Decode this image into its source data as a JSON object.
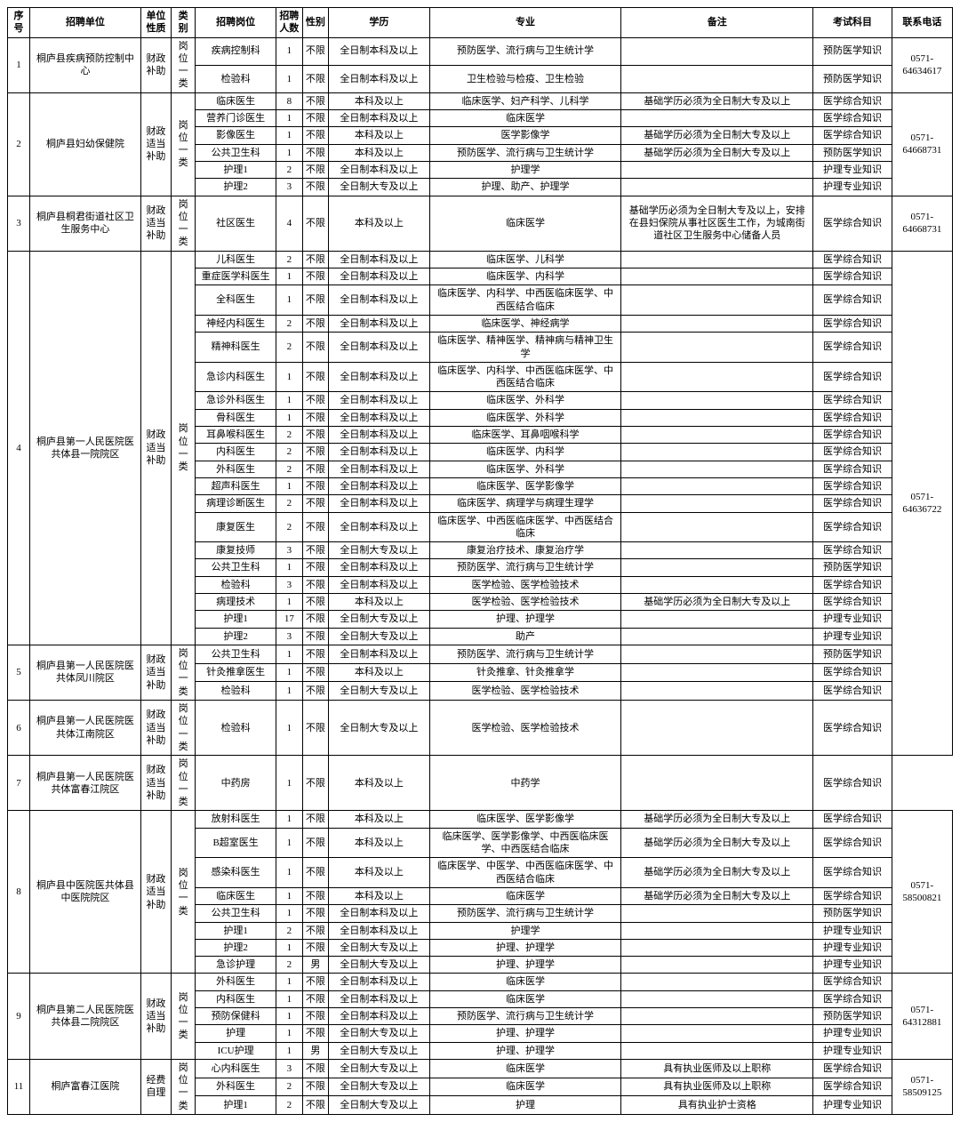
{
  "headers": {
    "seq": "序号",
    "unit": "招聘单位",
    "nature": "单位性质",
    "category": "类别",
    "position": "招聘岗位",
    "count": "招聘人数",
    "gender": "性别",
    "education": "学历",
    "major": "专业",
    "note": "备注",
    "subject": "考试科目",
    "tel": "联系电话"
  },
  "groups": [
    {
      "seq": "1",
      "unit": "桐庐县疾病预防控制中心",
      "nature": "财政补助",
      "category": "岗位一类",
      "tel": "0571-64634617",
      "rows": [
        {
          "pos": "疾病控制科",
          "num": "1",
          "gen": "不限",
          "edu": "全日制本科及以上",
          "maj": "预防医学、流行病与卫生统计学",
          "note": "",
          "sub": "预防医学知识"
        },
        {
          "pos": "检验科",
          "num": "1",
          "gen": "不限",
          "edu": "全日制本科及以上",
          "maj": "卫生检验与检疫、卫生检验",
          "note": "",
          "sub": "预防医学知识"
        }
      ]
    },
    {
      "seq": "2",
      "unit": "桐庐县妇幼保健院",
      "nature": "财政适当补助",
      "category": "岗位一类",
      "tel": "0571-64668731",
      "rows": [
        {
          "pos": "临床医生",
          "num": "8",
          "gen": "不限",
          "edu": "本科及以上",
          "maj": "临床医学、妇产科学、儿科学",
          "note": "基础学历必须为全日制大专及以上",
          "sub": "医学综合知识"
        },
        {
          "pos": "营养门诊医生",
          "num": "1",
          "gen": "不限",
          "edu": "全日制本科及以上",
          "maj": "临床医学",
          "note": "",
          "sub": "医学综合知识"
        },
        {
          "pos": "影像医生",
          "num": "1",
          "gen": "不限",
          "edu": "本科及以上",
          "maj": "医学影像学",
          "note": "基础学历必须为全日制大专及以上",
          "sub": "医学综合知识"
        },
        {
          "pos": "公共卫生科",
          "num": "1",
          "gen": "不限",
          "edu": "本科及以上",
          "maj": "预防医学、流行病与卫生统计学",
          "note": "基础学历必须为全日制大专及以上",
          "sub": "预防医学知识"
        },
        {
          "pos": "护理1",
          "num": "2",
          "gen": "不限",
          "edu": "全日制本科及以上",
          "maj": "护理学",
          "note": "",
          "sub": "护理专业知识"
        },
        {
          "pos": "护理2",
          "num": "3",
          "gen": "不限",
          "edu": "全日制大专及以上",
          "maj": "护理、助产、护理学",
          "note": "",
          "sub": "护理专业知识"
        }
      ]
    },
    {
      "seq": "3",
      "unit": "桐庐县桐君街道社区卫生服务中心",
      "nature": "财政适当补助",
      "category": "岗位一类",
      "tel": "0571-64668731",
      "rows": [
        {
          "pos": "社区医生",
          "num": "4",
          "gen": "不限",
          "edu": "本科及以上",
          "maj": "临床医学",
          "note": "基础学历必须为全日制大专及以上，安排在县妇保院从事社区医生工作，为城南街道社区卫生服务中心储备人员",
          "sub": "医学综合知识"
        }
      ]
    },
    {
      "seq": "4",
      "unit": "桐庐县第一人民医院医共体县一院院区",
      "nature": "财政适当补助",
      "category": "岗位一类",
      "tel": "0571-64636722",
      "telRowspan": 24,
      "rows": [
        {
          "pos": "儿科医生",
          "num": "2",
          "gen": "不限",
          "edu": "全日制本科及以上",
          "maj": "临床医学、儿科学",
          "note": "",
          "sub": "医学综合知识"
        },
        {
          "pos": "重症医学科医生",
          "num": "1",
          "gen": "不限",
          "edu": "全日制本科及以上",
          "maj": "临床医学、内科学",
          "note": "",
          "sub": "医学综合知识"
        },
        {
          "pos": "全科医生",
          "num": "1",
          "gen": "不限",
          "edu": "全日制本科及以上",
          "maj": "临床医学、内科学、中西医临床医学、中西医结合临床",
          "note": "",
          "sub": "医学综合知识"
        },
        {
          "pos": "神经内科医生",
          "num": "2",
          "gen": "不限",
          "edu": "全日制本科及以上",
          "maj": "临床医学、神经病学",
          "note": "",
          "sub": "医学综合知识"
        },
        {
          "pos": "精神科医生",
          "num": "2",
          "gen": "不限",
          "edu": "全日制本科及以上",
          "maj": "临床医学、精神医学、精神病与精神卫生学",
          "note": "",
          "sub": "医学综合知识"
        },
        {
          "pos": "急诊内科医生",
          "num": "1",
          "gen": "不限",
          "edu": "全日制本科及以上",
          "maj": "临床医学、内科学、中西医临床医学、中西医结合临床",
          "note": "",
          "sub": "医学综合知识"
        },
        {
          "pos": "急诊外科医生",
          "num": "1",
          "gen": "不限",
          "edu": "全日制本科及以上",
          "maj": "临床医学、外科学",
          "note": "",
          "sub": "医学综合知识"
        },
        {
          "pos": "骨科医生",
          "num": "1",
          "gen": "不限",
          "edu": "全日制本科及以上",
          "maj": "临床医学、外科学",
          "note": "",
          "sub": "医学综合知识"
        },
        {
          "pos": "耳鼻喉科医生",
          "num": "2",
          "gen": "不限",
          "edu": "全日制本科及以上",
          "maj": "临床医学、耳鼻咽喉科学",
          "note": "",
          "sub": "医学综合知识"
        },
        {
          "pos": "内科医生",
          "num": "2",
          "gen": "不限",
          "edu": "全日制本科及以上",
          "maj": "临床医学、内科学",
          "note": "",
          "sub": "医学综合知识"
        },
        {
          "pos": "外科医生",
          "num": "2",
          "gen": "不限",
          "edu": "全日制本科及以上",
          "maj": "临床医学、外科学",
          "note": "",
          "sub": "医学综合知识"
        },
        {
          "pos": "超声科医生",
          "num": "1",
          "gen": "不限",
          "edu": "全日制本科及以上",
          "maj": "临床医学、医学影像学",
          "note": "",
          "sub": "医学综合知识"
        },
        {
          "pos": "病理诊断医生",
          "num": "2",
          "gen": "不限",
          "edu": "全日制本科及以上",
          "maj": "临床医学、病理学与病理生理学",
          "note": "",
          "sub": "医学综合知识"
        },
        {
          "pos": "康复医生",
          "num": "2",
          "gen": "不限",
          "edu": "全日制本科及以上",
          "maj": "临床医学、中西医临床医学、中西医结合临床",
          "note": "",
          "sub": "医学综合知识"
        },
        {
          "pos": "康复技师",
          "num": "3",
          "gen": "不限",
          "edu": "全日制大专及以上",
          "maj": "康复治疗技术、康复治疗学",
          "note": "",
          "sub": "医学综合知识"
        },
        {
          "pos": "公共卫生科",
          "num": "1",
          "gen": "不限",
          "edu": "全日制本科及以上",
          "maj": "预防医学、流行病与卫生统计学",
          "note": "",
          "sub": "预防医学知识"
        },
        {
          "pos": "检验科",
          "num": "3",
          "gen": "不限",
          "edu": "全日制本科及以上",
          "maj": "医学检验、医学检验技术",
          "note": "",
          "sub": "医学综合知识"
        },
        {
          "pos": "病理技术",
          "num": "1",
          "gen": "不限",
          "edu": "本科及以上",
          "maj": "医学检验、医学检验技术",
          "note": "基础学历必须为全日制大专及以上",
          "sub": "医学综合知识"
        },
        {
          "pos": "护理1",
          "num": "17",
          "gen": "不限",
          "edu": "全日制大专及以上",
          "maj": "护理、护理学",
          "note": "",
          "sub": "护理专业知识"
        },
        {
          "pos": "护理2",
          "num": "3",
          "gen": "不限",
          "edu": "全日制大专及以上",
          "maj": "助产",
          "note": "",
          "sub": "护理专业知识"
        }
      ]
    },
    {
      "seq": "5",
      "unit": "桐庐县第一人民医院医共体凤川院区",
      "nature": "财政适当补助",
      "category": "岗位一类",
      "rows": [
        {
          "pos": "公共卫生科",
          "num": "1",
          "gen": "不限",
          "edu": "全日制本科及以上",
          "maj": "预防医学、流行病与卫生统计学",
          "note": "",
          "sub": "预防医学知识"
        },
        {
          "pos": "针灸推拿医生",
          "num": "1",
          "gen": "不限",
          "edu": "本科及以上",
          "maj": "针灸推拿、针灸推拿学",
          "note": "",
          "sub": "医学综合知识"
        },
        {
          "pos": "检验科",
          "num": "1",
          "gen": "不限",
          "edu": "全日制大专及以上",
          "maj": "医学检验、医学检验技术",
          "note": "",
          "sub": "医学综合知识"
        }
      ]
    },
    {
      "seq": "6",
      "unit": "桐庐县第一人民医院医共体江南院区",
      "nature": "财政适当补助",
      "category": "岗位一类",
      "rows": [
        {
          "pos": "检验科",
          "num": "1",
          "gen": "不限",
          "edu": "全日制大专及以上",
          "maj": "医学检验、医学检验技术",
          "note": "",
          "sub": "医学综合知识"
        }
      ]
    },
    {
      "seq": "7",
      "unit": "桐庐县第一人民医院医共体富春江院区",
      "nature": "财政适当补助",
      "category": "岗位一类",
      "rows": [
        {
          "pos": "中药房",
          "num": "1",
          "gen": "不限",
          "edu": "本科及以上",
          "maj": "中药学",
          "note": "",
          "sub": "医学综合知识"
        }
      ]
    },
    {
      "seq": "8",
      "unit": "桐庐县中医院医共体县中医院院区",
      "nature": "财政适当补助",
      "category": "岗位一类",
      "tel": "0571-58500821",
      "rows": [
        {
          "pos": "放射科医生",
          "num": "1",
          "gen": "不限",
          "edu": "本科及以上",
          "maj": "临床医学、医学影像学",
          "note": "基础学历必须为全日制大专及以上",
          "sub": "医学综合知识"
        },
        {
          "pos": "B超室医生",
          "num": "1",
          "gen": "不限",
          "edu": "本科及以上",
          "maj": "临床医学、医学影像学、中西医临床医学、中西医结合临床",
          "note": "基础学历必须为全日制大专及以上",
          "sub": "医学综合知识"
        },
        {
          "pos": "感染科医生",
          "num": "1",
          "gen": "不限",
          "edu": "本科及以上",
          "maj": "临床医学、中医学、中西医临床医学、中西医结合临床",
          "note": "基础学历必须为全日制大专及以上",
          "sub": "医学综合知识"
        },
        {
          "pos": "临床医生",
          "num": "1",
          "gen": "不限",
          "edu": "本科及以上",
          "maj": "临床医学",
          "note": "基础学历必须为全日制大专及以上",
          "sub": "医学综合知识"
        },
        {
          "pos": "公共卫生科",
          "num": "1",
          "gen": "不限",
          "edu": "全日制本科及以上",
          "maj": "预防医学、流行病与卫生统计学",
          "note": "",
          "sub": "预防医学知识"
        },
        {
          "pos": "护理1",
          "num": "2",
          "gen": "不限",
          "edu": "全日制本科及以上",
          "maj": "护理学",
          "note": "",
          "sub": "护理专业知识"
        },
        {
          "pos": "护理2",
          "num": "1",
          "gen": "不限",
          "edu": "全日制大专及以上",
          "maj": "护理、护理学",
          "note": "",
          "sub": "护理专业知识"
        },
        {
          "pos": "急诊护理",
          "num": "2",
          "gen": "男",
          "edu": "全日制大专及以上",
          "maj": "护理、护理学",
          "note": "",
          "sub": "护理专业知识"
        }
      ]
    },
    {
      "seq": "9",
      "unit": "桐庐县第二人民医院医共体县二院院区",
      "nature": "财政适当补助",
      "category": "岗位一类",
      "tel": "0571-64312881",
      "rows": [
        {
          "pos": "外科医生",
          "num": "1",
          "gen": "不限",
          "edu": "全日制本科及以上",
          "maj": "临床医学",
          "note": "",
          "sub": "医学综合知识"
        },
        {
          "pos": "内科医生",
          "num": "1",
          "gen": "不限",
          "edu": "全日制本科及以上",
          "maj": "临床医学",
          "note": "",
          "sub": "医学综合知识"
        },
        {
          "pos": "预防保健科",
          "num": "1",
          "gen": "不限",
          "edu": "全日制本科及以上",
          "maj": "预防医学、流行病与卫生统计学",
          "note": "",
          "sub": "预防医学知识"
        },
        {
          "pos": "护理",
          "num": "1",
          "gen": "不限",
          "edu": "全日制大专及以上",
          "maj": "护理、护理学",
          "note": "",
          "sub": "护理专业知识"
        },
        {
          "pos": "ICU护理",
          "num": "1",
          "gen": "男",
          "edu": "全日制大专及以上",
          "maj": "护理、护理学",
          "note": "",
          "sub": "护理专业知识"
        }
      ]
    },
    {
      "seq": "11",
      "unit": "桐庐富春江医院",
      "nature": "经费自理",
      "category": "岗位一类",
      "tel": "0571-58509125",
      "rows": [
        {
          "pos": "心内科医生",
          "num": "3",
          "gen": "不限",
          "edu": "全日制大专及以上",
          "maj": "临床医学",
          "note": "具有执业医师及以上职称",
          "sub": "医学综合知识"
        },
        {
          "pos": "外科医生",
          "num": "2",
          "gen": "不限",
          "edu": "全日制大专及以上",
          "maj": "临床医学",
          "note": "具有执业医师及以上职称",
          "sub": "医学综合知识"
        },
        {
          "pos": "护理1",
          "num": "2",
          "gen": "不限",
          "edu": "全日制大专及以上",
          "maj": "护理",
          "note": "具有执业护士资格",
          "sub": "护理专业知识"
        }
      ]
    }
  ]
}
